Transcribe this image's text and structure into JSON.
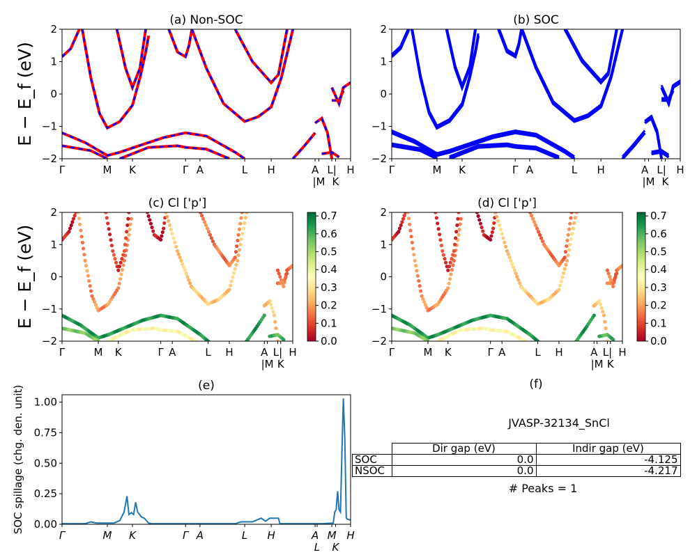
{
  "chart_data": [
    {
      "panel": "a",
      "type": "line",
      "title": "(a) Non-SOC",
      "ylabel": "E − E_f (eV)",
      "ylim": [
        -2,
        2
      ],
      "yticks": [
        -2,
        -1,
        0,
        1,
        2
      ],
      "xtick_labels": [
        "Γ",
        "M",
        "K",
        "Γ",
        "A",
        "L",
        "H",
        "A",
        "|M",
        "L|",
        "K",
        "H"
      ],
      "series_colors": {
        "nsoc": "#ff0000",
        "soc_dashed": "#0000ff"
      }
    },
    {
      "panel": "b",
      "type": "line",
      "title": "(b) SOC",
      "ylim": [
        -2,
        2
      ],
      "yticks": [
        -2,
        -1,
        0,
        1,
        2
      ],
      "xtick_labels": [
        "Γ",
        "M",
        "K",
        "Γ",
        "A",
        "L",
        "H",
        "A",
        "|M",
        "L|",
        "K",
        "H"
      ],
      "series_colors": {
        "soc": "#0000ff"
      }
    },
    {
      "panel": "c",
      "type": "scatter",
      "title": "(c)  Cl ['p']",
      "ylabel": "E − E_f (eV)",
      "ylim": [
        -2,
        2
      ],
      "yticks": [
        -2,
        -1,
        0,
        1,
        2
      ],
      "xtick_labels": [
        "Γ",
        "M",
        "K",
        "Γ",
        "A",
        "L",
        "H",
        "A",
        "|M",
        "L|",
        "K",
        "H"
      ],
      "colorbar": {
        "cmap": "RdYlGn",
        "range": [
          0,
          0.72
        ],
        "ticks": [
          "0.0",
          "0.1",
          "0.2",
          "0.3",
          "0.4",
          "0.5",
          "0.6",
          "0.7"
        ]
      }
    },
    {
      "panel": "d",
      "type": "scatter",
      "title": "(d) Cl ['p']",
      "ylim": [
        -2,
        2
      ],
      "yticks": [
        -2,
        -1,
        0,
        1,
        2
      ],
      "xtick_labels": [
        "Γ",
        "M",
        "K",
        "Γ",
        "A",
        "L",
        "H",
        "A",
        "|M",
        "L|",
        "K",
        "H"
      ],
      "colorbar": {
        "cmap": "RdYlGn",
        "range": [
          0,
          0.72
        ],
        "ticks": [
          "0.0",
          "0.1",
          "0.2",
          "0.3",
          "0.4",
          "0.5",
          "0.6",
          "0.7"
        ]
      }
    },
    {
      "panel": "e",
      "type": "line",
      "title": "(e)",
      "ylabel": "SOC spillage (chg. den. unit)",
      "ylim": [
        0,
        1.06
      ],
      "yticks": [
        "0.00",
        "0.25",
        "0.50",
        "0.75",
        "1.00"
      ],
      "xtick_labels": [
        "Γ",
        "M",
        "K",
        "Γ",
        "A",
        "L",
        "H",
        "A",
        "L",
        "M",
        "K",
        "H"
      ],
      "color": "#1f77b4",
      "k": [
        0,
        0.08,
        0.1,
        0.12,
        0.18,
        0.2,
        0.215,
        0.225,
        0.232,
        0.24,
        0.248,
        0.255,
        0.262,
        0.275,
        0.285,
        0.3,
        0.31,
        0.5,
        0.6,
        0.62,
        0.66,
        0.69,
        0.705,
        0.72,
        0.74,
        0.75,
        0.755,
        0.8,
        0.9,
        0.94,
        0.945,
        0.95,
        0.955,
        0.96,
        0.965,
        0.97,
        0.975,
        0.98,
        0.985,
        0.99,
        1.0
      ],
      "values": [
        0.005,
        0.005,
        0.02,
        0.01,
        0.01,
        0.03,
        0.1,
        0.23,
        0.08,
        0.095,
        0.08,
        0.18,
        0.1,
        0.06,
        0.05,
        0.01,
        0.005,
        0.005,
        0.005,
        0.02,
        0.02,
        0.05,
        0.025,
        0.05,
        0.05,
        0.05,
        0.005,
        0.005,
        0.005,
        0.01,
        0.1,
        0.12,
        0.27,
        0.12,
        0.1,
        0.6,
        1.03,
        0.7,
        0.05,
        0.04,
        0.035
      ]
    }
  ],
  "bands": [
    {
      "k": [
        0,
        0.03,
        0.06
      ],
      "E": [
        1.15,
        1.4,
        2.0
      ],
      "w": 0.05
    },
    {
      "k": [
        0.07,
        0.1,
        0.13,
        0.157,
        0.2,
        0.244,
        0.27,
        0.29,
        0.3
      ],
      "E": [
        2.0,
        0.5,
        -0.6,
        -1.05,
        -0.85,
        -0.35,
        0.5,
        1.3,
        1.8
      ],
      "w": 0.18
    },
    {
      "k": [
        0.19,
        0.22,
        0.244,
        0.27,
        0.29
      ],
      "E": [
        2.0,
        0.8,
        0.2,
        0.8,
        2.0
      ],
      "w": 0.08
    },
    {
      "k": [
        0.37,
        0.4,
        0.428,
        0.44,
        0.45
      ],
      "E": [
        2.0,
        1.3,
        1.15,
        1.5,
        2.0
      ],
      "w": 0.03
    },
    {
      "k": [
        0.45,
        0.5,
        0.56,
        0.633,
        0.68,
        0.725,
        0.76,
        0.8
      ],
      "E": [
        2.0,
        0.8,
        -0.3,
        -0.85,
        -0.7,
        -0.4,
        0.5,
        2.0
      ],
      "w": 0.25
    },
    {
      "k": [
        0.6,
        0.66,
        0.725,
        0.75,
        0.78
      ],
      "E": [
        2.0,
        1.0,
        0.35,
        0.6,
        2.0
      ],
      "w": 0.15
    },
    {
      "k": [
        0,
        0.08,
        0.157,
        0.2,
        0.25,
        0.35,
        0.428,
        0.5,
        0.6,
        0.633
      ],
      "E": [
        -1.2,
        -1.5,
        -1.9,
        -1.8,
        -1.65,
        -1.35,
        -1.2,
        -1.3,
        -1.8,
        -2.0
      ],
      "w": 0.65
    },
    {
      "k": [
        0,
        0.1,
        0.157
      ],
      "E": [
        -1.6,
        -1.75,
        -2.0
      ],
      "w": 0.55
    },
    {
      "k": [
        0.2,
        0.3,
        0.4,
        0.428,
        0.5,
        0.58
      ],
      "E": [
        -2.0,
        -1.65,
        -1.6,
        -1.65,
        -1.7,
        -2.0
      ],
      "w": 0.35
    },
    {
      "k": [
        0.8,
        0.84,
        0.877
      ],
      "E": [
        -2.0,
        -1.6,
        -1.2
      ],
      "w": 0.65
    },
    {
      "k": [
        0.877,
        0.9,
        0.92,
        0.935
      ],
      "E": [
        -0.9,
        -0.75,
        -1.2,
        -2.0
      ],
      "w": 0.25
    },
    {
      "k": [
        0.935,
        0.96,
        0.975,
        1.0
      ],
      "E": [
        0.2,
        -0.3,
        0.2,
        0.35
      ],
      "w": 0.15
    },
    {
      "k": [
        0.935,
        0.96,
        0.975
      ],
      "E": [
        -0.2,
        -0.2,
        0.1
      ],
      "w": 0.15
    },
    {
      "k": [
        0.9,
        0.935,
        0.96
      ],
      "E": [
        -1.85,
        -1.8,
        -1.95
      ],
      "w": 0.6
    }
  ],
  "panel_f": {
    "title": "(f)",
    "material": "JVASP-32134_SnCl",
    "table": {
      "columns": [
        "Dir gap (eV)",
        "Indir gap (eV)"
      ],
      "rows": [
        {
          "label": "SOC",
          "dir": "0.0",
          "indir": "-4.125"
        },
        {
          "label": "NSOC",
          "dir": "0.0",
          "indir": "-4.217"
        }
      ]
    },
    "peaks": "# Peaks = 1"
  }
}
